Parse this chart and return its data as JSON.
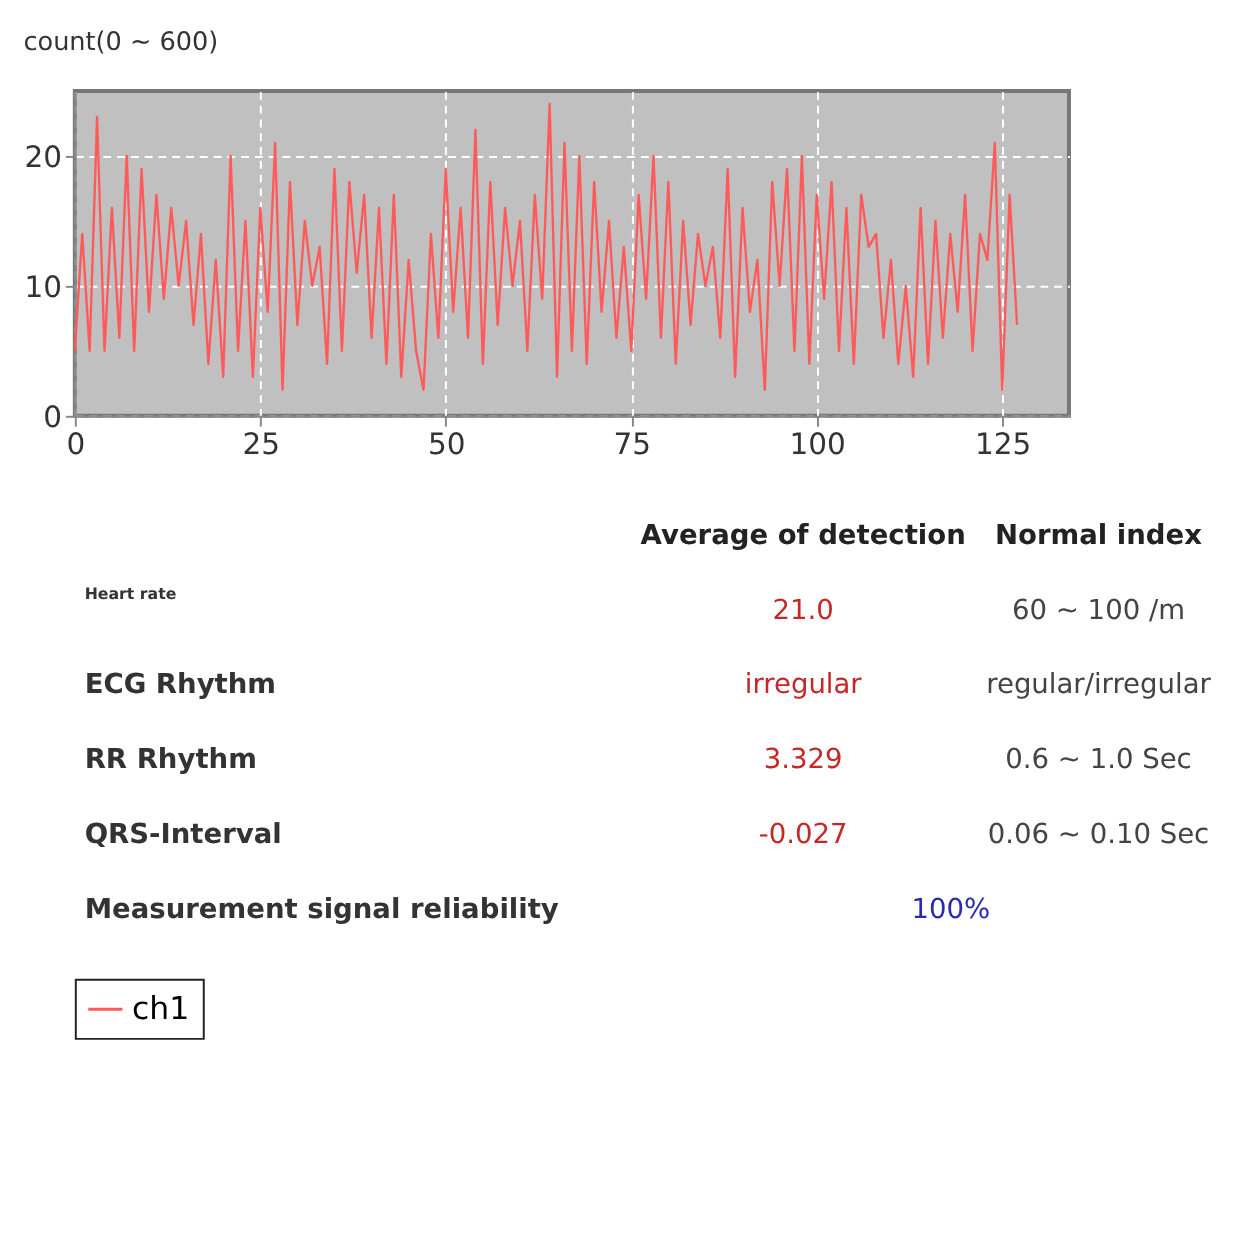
{
  "chart_data": [
    {
      "type": "line",
      "title": "count(0 ~ 600)",
      "xlim": [
        0,
        134
      ],
      "ylim": [
        0,
        25
      ],
      "xticks": [
        0,
        25,
        50,
        75,
        100,
        125
      ],
      "yticks": [
        0,
        10,
        20
      ],
      "grid": true,
      "legend": "bottom",
      "marker": "none",
      "line_style": "solid",
      "x": [
        0,
        1,
        2,
        3,
        4,
        5,
        6,
        7,
        8,
        9,
        10,
        11,
        12,
        13,
        14,
        15,
        16,
        17,
        18,
        19,
        20,
        21,
        22,
        23,
        24,
        25,
        26,
        27,
        28,
        29,
        30,
        31,
        32,
        33,
        34,
        35,
        36,
        37,
        38,
        39,
        40,
        41,
        42,
        43,
        44,
        45,
        46,
        47,
        48,
        49,
        50,
        51,
        52,
        53,
        54,
        55,
        56,
        57,
        58,
        59,
        60,
        61,
        62,
        63,
        64,
        65,
        66,
        67,
        68,
        69,
        70,
        71,
        72,
        73,
        74,
        75,
        76,
        77,
        78,
        79,
        80,
        81,
        82,
        83,
        84,
        85,
        86,
        87,
        88,
        89,
        90,
        91,
        92,
        93,
        94,
        95,
        96,
        97,
        98,
        99,
        100,
        101,
        102,
        103,
        104,
        105,
        106,
        107,
        108,
        109,
        110,
        111,
        112,
        113,
        114,
        115,
        116,
        117,
        118,
        119,
        120,
        121,
        122,
        123,
        124,
        125,
        126,
        127
      ],
      "series": [
        {
          "name": "ch1",
          "color": "#ff5a5a",
          "values": [
            5,
            14,
            5,
            23,
            5,
            16,
            6,
            20,
            5,
            19,
            8,
            17,
            9,
            16,
            10,
            15,
            7,
            14,
            4,
            12,
            3,
            20,
            5,
            15,
            3,
            16,
            8,
            21,
            2,
            18,
            7,
            15,
            10,
            13,
            4,
            19,
            5,
            18,
            11,
            17,
            6,
            16,
            4,
            17,
            3,
            12,
            5,
            2,
            14,
            6,
            19,
            8,
            16,
            6,
            22,
            4,
            18,
            7,
            16,
            10,
            15,
            5,
            17,
            9,
            24,
            3,
            21,
            5,
            20,
            4,
            18,
            8,
            15,
            6,
            13,
            5,
            17,
            9,
            20,
            6,
            18,
            4,
            15,
            7,
            14,
            10,
            13,
            6,
            19,
            3,
            16,
            8,
            12,
            2,
            18,
            10,
            19,
            5,
            20,
            4,
            17,
            9,
            18,
            5,
            16,
            4,
            17,
            13,
            14,
            6,
            12,
            4,
            10,
            3,
            16,
            4,
            15,
            6,
            14,
            8,
            17,
            5,
            14,
            12,
            21,
            2,
            17,
            7
          ]
        }
      ]
    },
    {
      "type": "other",
      "annotations": [
        "Average of detection",
        "Normal index",
        "Heart rate",
        "21.0",
        "60 ~ 100 /m",
        "ECG Rhythm",
        "irregular",
        "regular/irregular",
        "RR Rhythm",
        "3.329",
        "0.6 ~ 1.0 Sec",
        "QRS-Interval",
        "-0.027",
        "0.06 ~ 0.10 Sec",
        "Measurement signal reliability",
        "100%"
      ]
    }
  ]
}
